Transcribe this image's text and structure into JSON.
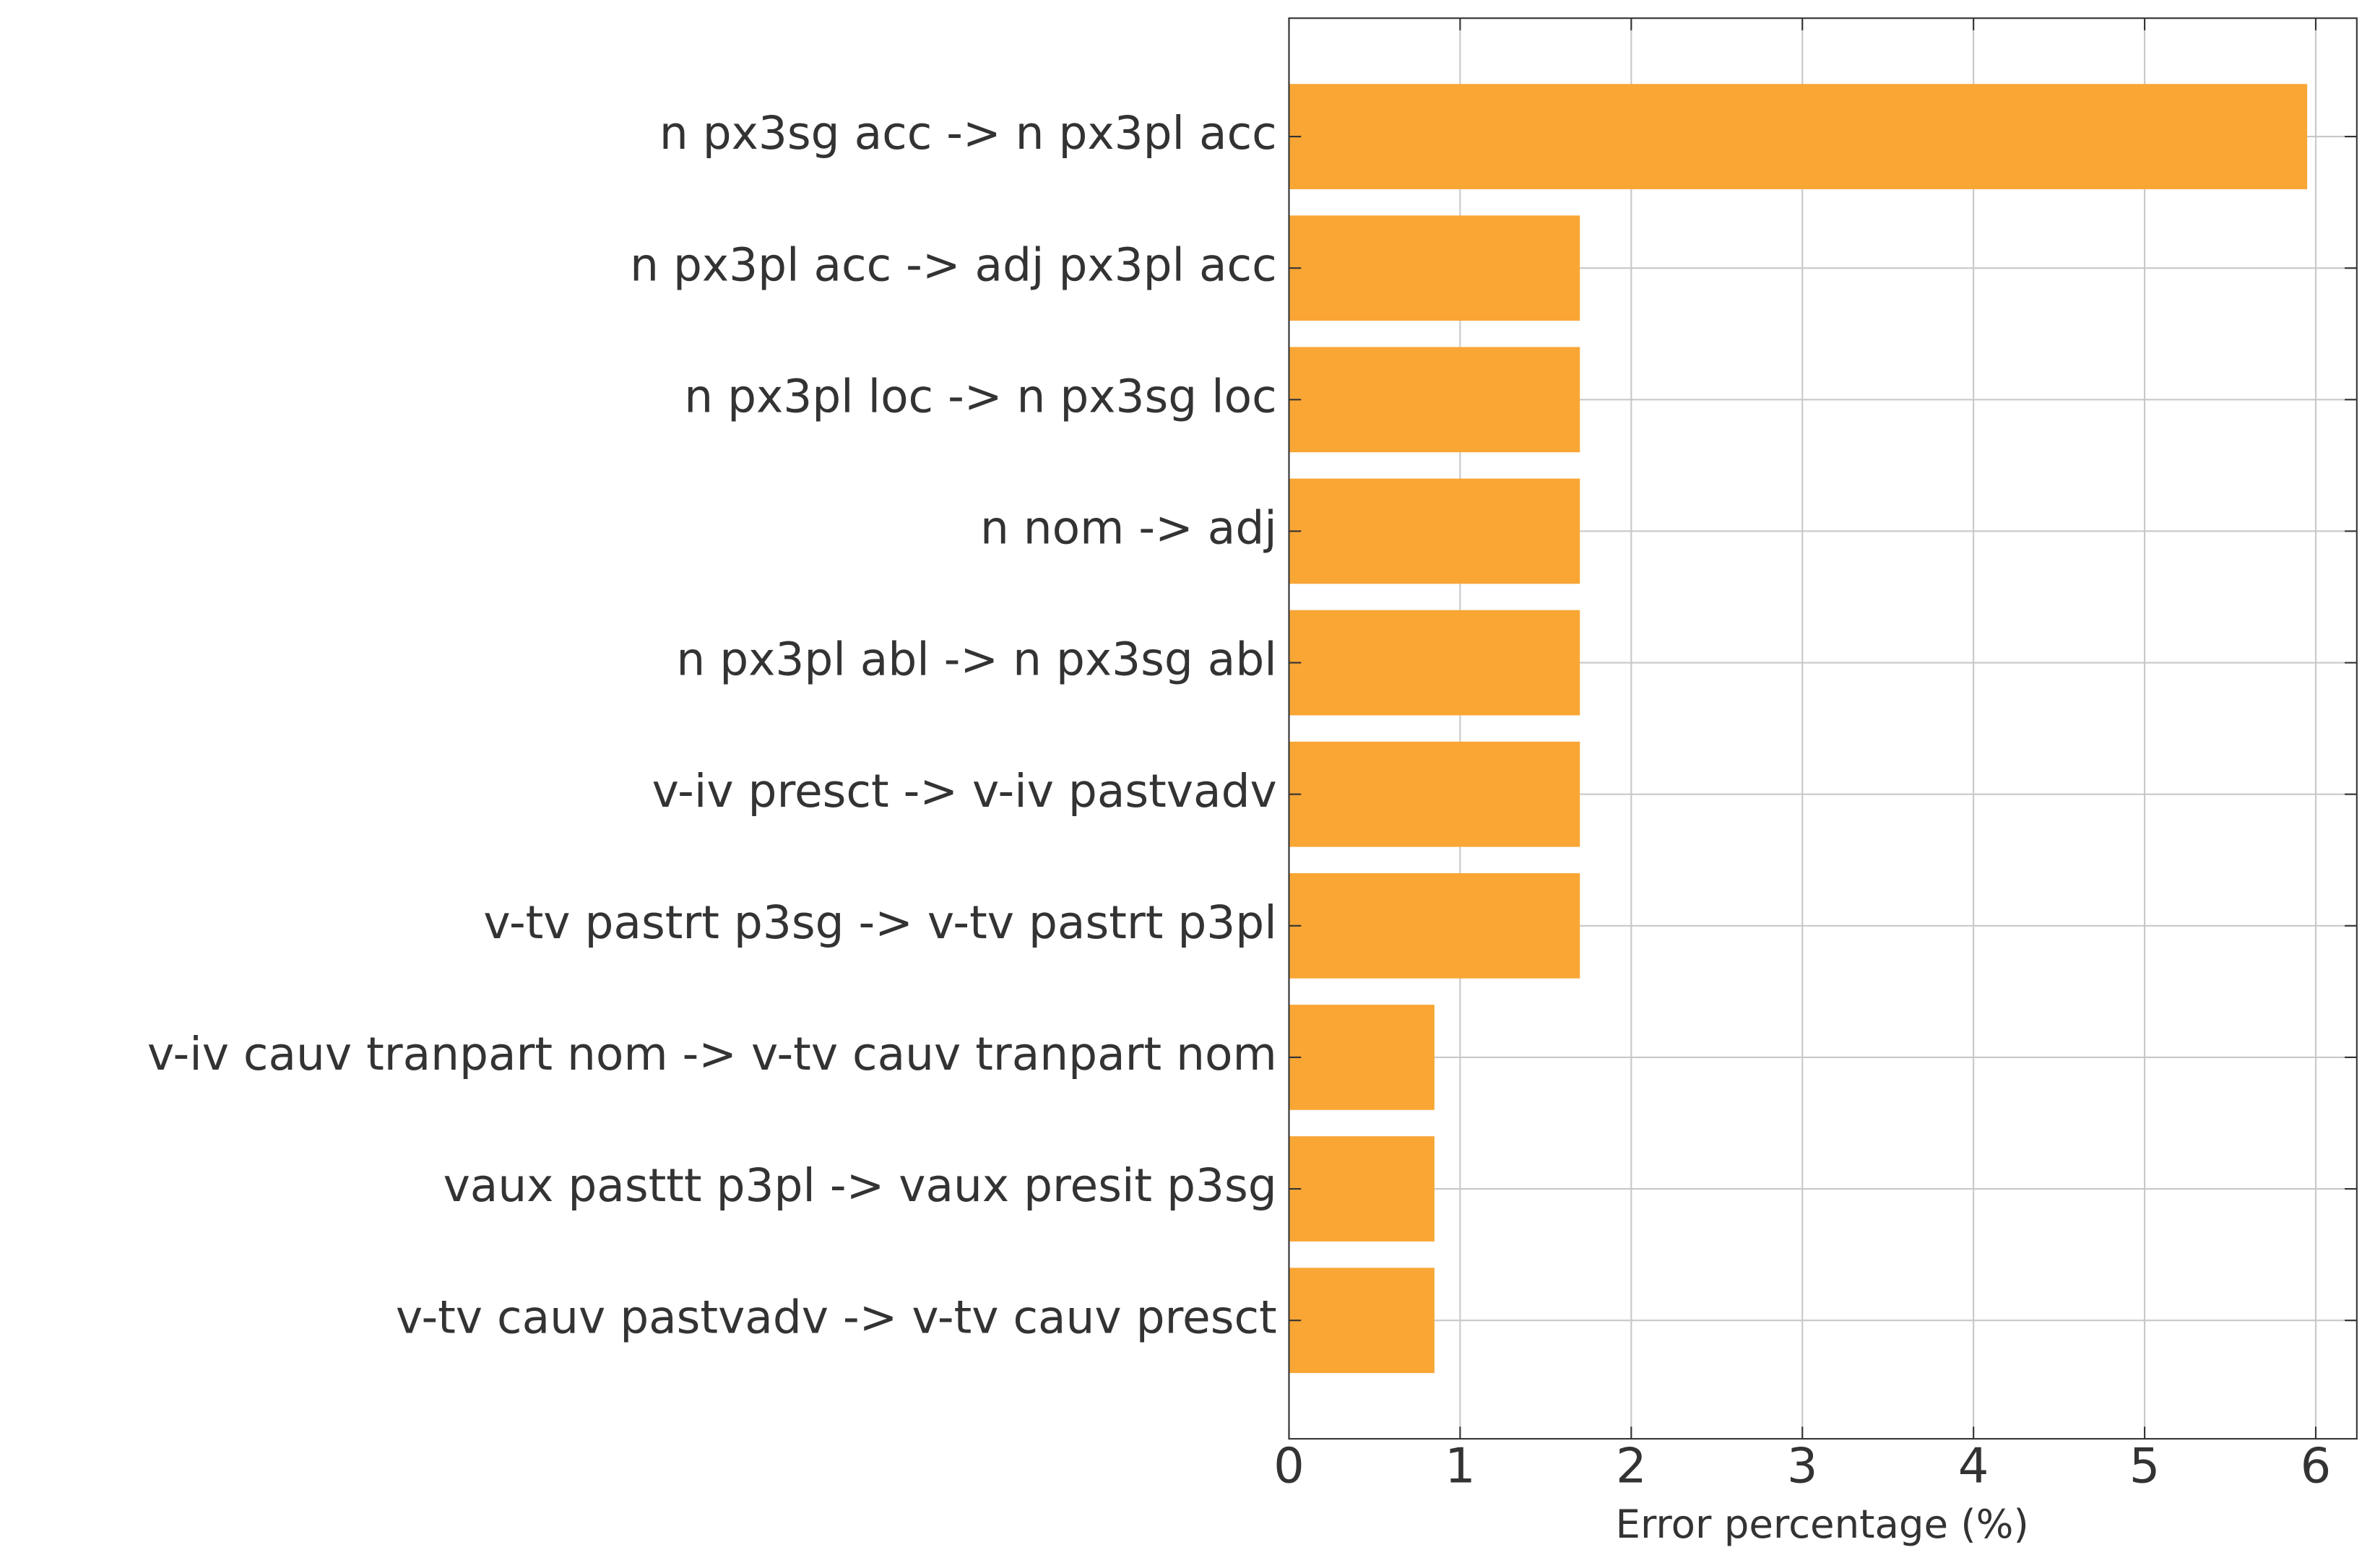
{
  "chart_data": {
    "type": "barh",
    "categories": [
      "n px3sg acc -> n px3pl acc",
      "n px3pl acc -> adj px3pl acc",
      "n px3pl loc -> n px3sg loc",
      "n nom -> adj",
      "n px3pl abl -> n px3sg abl",
      "v-iv presct -> v-iv pastvadv",
      "v-tv pastrt p3sg -> v-tv pastrt p3pl",
      "v-iv cauv tranpart nom -> v-tv cauv tranpart nom",
      "vaux pasttt p3pl -> vaux presit p3sg",
      "v-tv cauv pastvadv -> v-tv cauv presct"
    ],
    "values": [
      5.95,
      1.7,
      1.7,
      1.7,
      1.7,
      1.7,
      1.7,
      0.85,
      0.85,
      0.85
    ],
    "color": "#f9a635",
    "x_label": "Error percentage (%)",
    "xlim": [
      0,
      6.24
    ],
    "xticks": [
      0,
      1,
      2,
      3,
      4,
      5,
      6
    ],
    "grid": true
  }
}
